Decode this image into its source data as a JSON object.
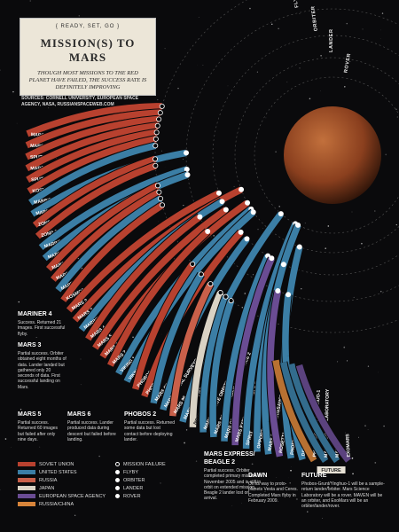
{
  "header": {
    "kicker": "{ READY, SET, GO }",
    "title": "MISSION(S) TO MARS",
    "subtitle": "Though most missions to the red planet have failed, the success rate is definitely improving",
    "sources": "SOURCES: CORNELL UNIVERSITY, EUROPEAN SPACE AGENCY, NASA, RUSSIANSPACEWEB.COM"
  },
  "outcomes": [
    "MISSION FAILURE",
    "FLYBY",
    "ORBITER",
    "LANDER",
    "ROVER"
  ],
  "agencies": [
    {
      "name": "SOVIET UNION",
      "color": "#b8412f"
    },
    {
      "name": "UNITED STATES",
      "color": "#3b7ea5"
    },
    {
      "name": "RUSSIA",
      "color": "#c9604a"
    },
    {
      "name": "JAPAN",
      "color": "#d9d2c4"
    },
    {
      "name": "EUROPEAN SPACE AGENCY",
      "color": "#6a4c93"
    },
    {
      "name": "RUSSIA/CHINA",
      "color": "#d7843a"
    }
  ],
  "missions": [
    {
      "name": "MARSNIK 1",
      "agency": "SOVIET UNION",
      "outcome": "MISSION FAILURE"
    },
    {
      "name": "MARSNIK 2",
      "agency": "SOVIET UNION",
      "outcome": "MISSION FAILURE"
    },
    {
      "name": "SPUTNIK 22",
      "agency": "SOVIET UNION",
      "outcome": "MISSION FAILURE"
    },
    {
      "name": "MARS 1",
      "agency": "SOVIET UNION",
      "outcome": "MISSION FAILURE"
    },
    {
      "name": "SPUTNIK 24",
      "agency": "SOVIET UNION",
      "outcome": "MISSION FAILURE"
    },
    {
      "name": "KOSMOS 21",
      "agency": "SOVIET UNION",
      "outcome": "MISSION FAILURE"
    },
    {
      "name": "MARINER 3",
      "agency": "UNITED STATES",
      "outcome": "MISSION FAILURE"
    },
    {
      "name": "MARINER 4",
      "agency": "UNITED STATES",
      "outcome": "FLYBY"
    },
    {
      "name": "ZOND 2",
      "agency": "SOVIET UNION",
      "outcome": "MISSION FAILURE"
    },
    {
      "name": "ZOND 3",
      "agency": "SOVIET UNION",
      "outcome": "MISSION FAILURE"
    },
    {
      "name": "MARINER 6",
      "agency": "UNITED STATES",
      "outcome": "FLYBY"
    },
    {
      "name": "MARINER 7",
      "agency": "UNITED STATES",
      "outcome": "FLYBY"
    },
    {
      "name": "MARS 1969A",
      "agency": "SOVIET UNION",
      "outcome": "MISSION FAILURE"
    },
    {
      "name": "MARS 1969B",
      "agency": "SOVIET UNION",
      "outcome": "MISSION FAILURE"
    },
    {
      "name": "MARINER 8",
      "agency": "UNITED STATES",
      "outcome": "MISSION FAILURE"
    },
    {
      "name": "KOSMOS 419",
      "agency": "SOVIET UNION",
      "outcome": "MISSION FAILURE"
    },
    {
      "name": "MARS 2",
      "agency": "SOVIET UNION",
      "outcome": "ORBITER"
    },
    {
      "name": "MARS 3",
      "agency": "SOVIET UNION",
      "outcome": "LANDER"
    },
    {
      "name": "MARINER 9",
      "agency": "UNITED STATES",
      "outcome": "ORBITER"
    },
    {
      "name": "MARS 4",
      "agency": "SOVIET UNION",
      "outcome": "FLYBY"
    },
    {
      "name": "MARS 5",
      "agency": "SOVIET UNION",
      "outcome": "ORBITER"
    },
    {
      "name": "MARS 6",
      "agency": "SOVIET UNION",
      "outcome": "LANDER"
    },
    {
      "name": "MARS 7",
      "agency": "SOVIET UNION",
      "outcome": "FLYBY"
    },
    {
      "name": "VIKING 1",
      "agency": "UNITED STATES",
      "outcome": "LANDER"
    },
    {
      "name": "VIKING 2",
      "agency": "UNITED STATES",
      "outcome": "LANDER"
    },
    {
      "name": "PHOBOS 1",
      "agency": "SOVIET UNION",
      "outcome": "MISSION FAILURE"
    },
    {
      "name": "PHOBOS 2",
      "agency": "SOVIET UNION",
      "outcome": "ORBITER"
    },
    {
      "name": "MARS OBSERVER",
      "agency": "UNITED STATES",
      "outcome": "MISSION FAILURE"
    },
    {
      "name": "MARS GLOBAL SURVEYOR",
      "agency": "UNITED STATES",
      "outcome": "ORBITER"
    },
    {
      "name": "MARS 96",
      "agency": "RUSSIA",
      "outcome": "MISSION FAILURE"
    },
    {
      "name": "MARS PATHFINDER",
      "agency": "UNITED STATES",
      "outcome": "ROVER"
    },
    {
      "name": "NOZOMI",
      "agency": "JAPAN",
      "outcome": "MISSION FAILURE"
    },
    {
      "name": "MARS CLIMATE ORBITER",
      "agency": "UNITED STATES",
      "outcome": "MISSION FAILURE"
    },
    {
      "name": "MARS POLAR LANDER / DEEP SPACE 2",
      "agency": "UNITED STATES",
      "outcome": "MISSION FAILURE"
    },
    {
      "name": "MARS ODYSSEY",
      "agency": "UNITED STATES",
      "outcome": "ORBITER"
    },
    {
      "name": "MARS EXPRESS / BEAGLE 2",
      "agency": "EUROPEAN SPACE AGENCY",
      "outcome": "ORBITER"
    },
    {
      "name": "SPIRIT",
      "agency": "UNITED STATES",
      "outcome": "ROVER"
    },
    {
      "name": "OPPORTUNITY",
      "agency": "UNITED STATES",
      "outcome": "ROVER"
    },
    {
      "name": "MARS RECONNAISSANCE ORBITER",
      "agency": "UNITED STATES",
      "outcome": "ORBITER"
    },
    {
      "name": "ROSETTA",
      "agency": "EUROPEAN SPACE AGENCY",
      "outcome": "FLYBY"
    },
    {
      "name": "PHOENIX",
      "agency": "UNITED STATES",
      "outcome": "LANDER"
    },
    {
      "name": "DAWN",
      "agency": "UNITED STATES",
      "outcome": "FLYBY"
    },
    {
      "name": "PHOBOS-GRUNT / YINGHUO-1",
      "agency": "RUSSIA/CHINA"
    },
    {
      "name": "MARS SCIENCE LABORATORY",
      "agency": "UNITED STATES"
    },
    {
      "name": "MAVEN",
      "agency": "UNITED STATES"
    },
    {
      "name": "EXOMARS",
      "agency": "EUROPEAN SPACE AGENCY"
    }
  ],
  "group_label": "FUTURE",
  "annotations": [
    {
      "title": "MARINER 4",
      "text": "Success. Returned 21 images. First successful flyby."
    },
    {
      "title": "MARS 3",
      "text": "Partial success. Orbiter obtained eight months of data. Lander landed but gathered only 20 seconds of data. First successful landing on Mars."
    },
    {
      "title": "MARS 5",
      "text": "Partial success. Returned 60 images but failed after only nine days."
    },
    {
      "title": "MARS 6",
      "text": "Partial success. Lander produced data during descent but failed before landing."
    },
    {
      "title": "PHOBOS 2",
      "text": "Partial success. Returned some data but lost contact before deploying lander."
    },
    {
      "title": "MARS EXPRESS/ BEAGLE 2",
      "text": "Partial success. Orbiter completed primary mission in November 2005 and is still in orbit on extended mission. Beagle 2 lander lost on arrival."
    },
    {
      "title": "DAWN",
      "text": "On its way to proto-planets Vesta and Ceres. Completed Mars flyby in February 2009."
    },
    {
      "title": "FUTURE",
      "text": "Phobos-Grunt/Yinghuo-1 will be a sample-return lander/orbiter. Mars Science Laboratory will be a rover. MAVEN will be an orbiter, and ExoMars will be an orbiter/lander/rover."
    }
  ]
}
